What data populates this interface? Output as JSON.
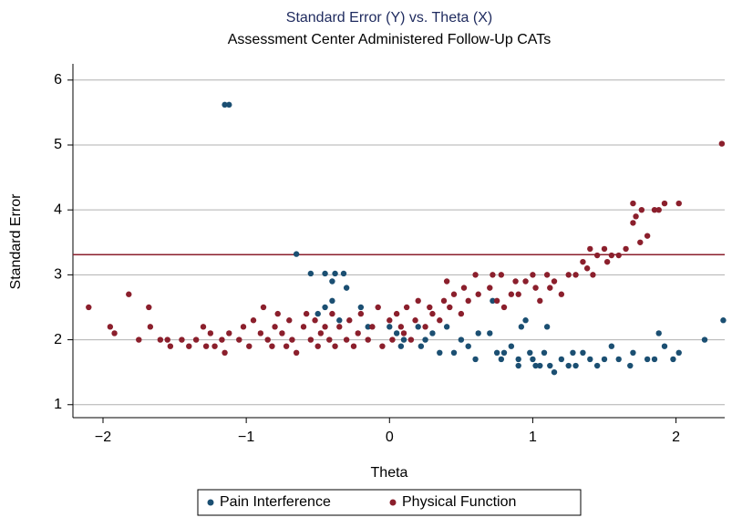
{
  "chart_data": {
    "type": "scatter",
    "title": "Standard Error (Y) vs. Theta (X)",
    "subtitle": "Assessment Center Administered Follow-Up CATs",
    "x_label": "Theta",
    "y_label": "Standard Error",
    "xlim": [
      -2.21,
      2.34
    ],
    "ylim": [
      0.8,
      6.25
    ],
    "xticks": [
      {
        "value": -2,
        "label": "−2"
      },
      {
        "value": -1,
        "label": "−1"
      },
      0,
      1,
      2
    ],
    "yticks": [
      1,
      2,
      3,
      4,
      5,
      6
    ],
    "grid": true,
    "reference_line": {
      "y": 3.31,
      "color": "#8b1f2c"
    },
    "legend": "bottom",
    "series": [
      {
        "name": "Pain Interference",
        "color": "#1b4f72",
        "x": [
          -1.15,
          -1.12,
          -0.65,
          -0.55,
          -0.45,
          -0.38,
          -0.32,
          -0.4,
          -0.3,
          -0.45,
          -0.4,
          -0.5,
          -0.35,
          -0.2,
          -0.15,
          0.05,
          0.1,
          0.08,
          0.2,
          0.25,
          0.22,
          0.3,
          0.35,
          0.4,
          0.45,
          0.5,
          0.55,
          0.6,
          0.62,
          0.72,
          0.75,
          0.78,
          0.8,
          0.85,
          0.9,
          0.92,
          0.95,
          0.98,
          1.0,
          1.05,
          1.08,
          1.1,
          1.12,
          1.15,
          1.2,
          1.25,
          1.28,
          1.3,
          1.35,
          1.4,
          1.45,
          1.5,
          1.55,
          1.6,
          1.68,
          1.7,
          1.8,
          1.85,
          1.88,
          1.92,
          1.98,
          2.02,
          2.2,
          2.33,
          0.9,
          1.02,
          0.7,
          0.0
        ],
        "values": [
          5.62,
          5.62,
          3.32,
          3.02,
          3.02,
          3.02,
          3.02,
          2.9,
          2.8,
          2.5,
          2.6,
          2.4,
          2.3,
          2.5,
          2.2,
          2.1,
          2.0,
          1.9,
          2.2,
          2.0,
          1.9,
          2.1,
          1.8,
          2.2,
          1.8,
          2.0,
          1.9,
          1.7,
          2.1,
          2.6,
          1.8,
          1.7,
          1.8,
          1.9,
          1.7,
          2.2,
          2.3,
          1.8,
          1.7,
          1.6,
          1.8,
          2.2,
          1.6,
          1.5,
          1.7,
          1.6,
          1.8,
          1.6,
          1.8,
          1.7,
          1.6,
          1.7,
          1.9,
          1.7,
          1.6,
          1.8,
          1.7,
          1.7,
          2.1,
          1.9,
          1.7,
          1.8,
          2.0,
          2.3,
          1.6,
          1.6,
          2.1,
          2.2
        ]
      },
      {
        "name": "Physical Function",
        "color": "#8b1f2c",
        "x": [
          -2.1,
          -1.95,
          -1.92,
          -1.82,
          -1.75,
          -1.68,
          -1.67,
          -1.6,
          -1.55,
          -1.53,
          -1.45,
          -1.4,
          -1.35,
          -1.3,
          -1.28,
          -1.25,
          -1.22,
          -1.17,
          -1.15,
          -1.12,
          -1.05,
          -1.02,
          -0.98,
          -0.95,
          -0.9,
          -0.88,
          -0.85,
          -0.82,
          -0.8,
          -0.78,
          -0.75,
          -0.72,
          -0.7,
          -0.68,
          -0.65,
          -0.6,
          -0.58,
          -0.55,
          -0.52,
          -0.5,
          -0.48,
          -0.45,
          -0.42,
          -0.4,
          -0.38,
          -0.35,
          -0.3,
          -0.28,
          -0.25,
          -0.22,
          -0.2,
          -0.15,
          -0.12,
          -0.08,
          -0.05,
          0,
          0.02,
          0.05,
          0.08,
          0.1,
          0.12,
          0.15,
          0.18,
          0.2,
          0.25,
          0.28,
          0.3,
          0.35,
          0.38,
          0.4,
          0.42,
          0.45,
          0.5,
          0.52,
          0.55,
          0.6,
          0.62,
          0.7,
          0.72,
          0.75,
          0.78,
          0.8,
          0.85,
          0.88,
          0.9,
          0.95,
          1.0,
          1.02,
          1.05,
          1.1,
          1.12,
          1.15,
          1.2,
          1.25,
          1.3,
          1.35,
          1.38,
          1.4,
          1.42,
          1.45,
          1.5,
          1.52,
          1.55,
          1.6,
          1.65,
          1.7,
          1.7,
          1.72,
          1.75,
          1.76,
          1.8,
          1.85,
          1.88,
          1.92,
          2.02,
          2.32
        ],
        "values": [
          2.5,
          2.2,
          2.1,
          2.7,
          2.0,
          2.5,
          2.2,
          2.0,
          2.0,
          1.9,
          2.0,
          1.9,
          2.0,
          2.2,
          1.9,
          2.1,
          1.9,
          2.0,
          1.8,
          2.1,
          2.0,
          2.2,
          1.9,
          2.3,
          2.1,
          2.5,
          2.0,
          1.9,
          2.2,
          2.4,
          2.1,
          1.9,
          2.3,
          2.0,
          1.8,
          2.2,
          2.4,
          2.0,
          2.3,
          1.9,
          2.1,
          2.2,
          2.0,
          2.4,
          1.9,
          2.2,
          2.0,
          2.3,
          1.9,
          2.1,
          2.4,
          2.0,
          2.2,
          2.5,
          1.9,
          2.3,
          2.0,
          2.4,
          2.2,
          2.1,
          2.5,
          2.0,
          2.3,
          2.6,
          2.2,
          2.5,
          2.4,
          2.3,
          2.6,
          2.9,
          2.5,
          2.7,
          2.4,
          2.8,
          2.6,
          3.0,
          2.7,
          2.8,
          3.0,
          2.6,
          3.0,
          2.5,
          2.7,
          2.9,
          2.7,
          2.9,
          3.0,
          2.8,
          2.6,
          3.0,
          2.8,
          2.9,
          2.7,
          3.0,
          3.0,
          3.2,
          3.1,
          3.4,
          3.0,
          3.3,
          3.4,
          3.2,
          3.3,
          3.3,
          3.4,
          4.1,
          3.8,
          3.9,
          3.5,
          4.0,
          3.6,
          4.0,
          4.0,
          4.1,
          4.1,
          5.02
        ]
      }
    ]
  }
}
